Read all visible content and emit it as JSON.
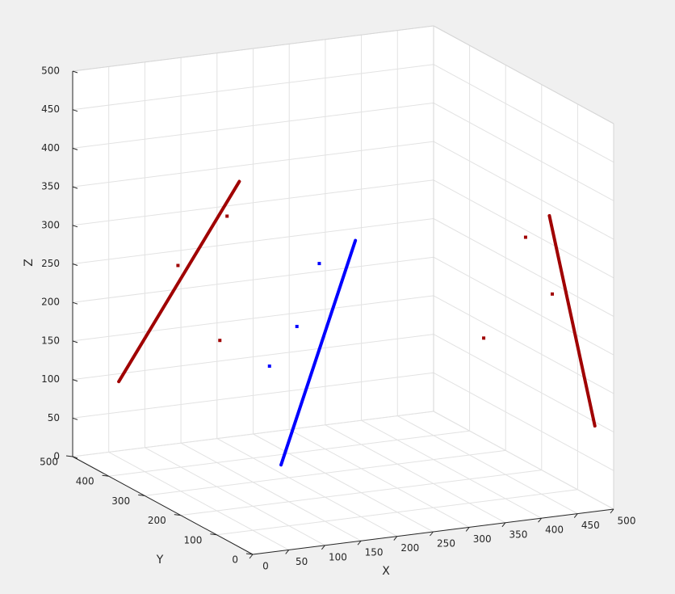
{
  "chart_data": {
    "type": "scatter3",
    "xlabel": "X",
    "ylabel": "Y",
    "zlabel": "Z",
    "xlim": [
      0,
      500
    ],
    "ylim": [
      0,
      500
    ],
    "zlim": [
      0,
      500
    ],
    "xticks": [
      0,
      50,
      100,
      150,
      200,
      250,
      300,
      350,
      400,
      450,
      500
    ],
    "yticks": [
      0,
      100,
      200,
      300,
      400,
      500
    ],
    "zticks": [
      0,
      50,
      100,
      150,
      200,
      250,
      300,
      350,
      400,
      450,
      500
    ],
    "grid": true,
    "series": [
      {
        "color": "#a00000",
        "line": true,
        "x": [
          14,
          181
        ],
        "y": [
          400,
          400
        ],
        "z": [
          121,
          361
        ]
      },
      {
        "color": "#0000ff",
        "line": true,
        "x": [
          139,
          242
        ],
        "y": [
          200,
          200
        ],
        "z": [
          49,
          328
        ]
      },
      {
        "color": "#a00000",
        "line": true,
        "x": [
          411,
          474
        ],
        "y": [
          0,
          0
        ],
        "z": [
          391,
          111
        ]
      },
      {
        "color": "#a00000",
        "line": false,
        "x": [
          96,
          164,
          154,
          320,
          378,
          415
        ],
        "y": [
          400,
          400,
          400,
          0,
          0,
          0
        ],
        "z": [
          262,
          318,
          158,
          243,
          367,
          289
        ]
      },
      {
        "color": "#0000ff",
        "line": false,
        "x": [
          123,
          161,
          192
        ],
        "y": [
          200,
          200,
          200
        ],
        "z": [
          179,
          226,
          304
        ]
      }
    ]
  }
}
